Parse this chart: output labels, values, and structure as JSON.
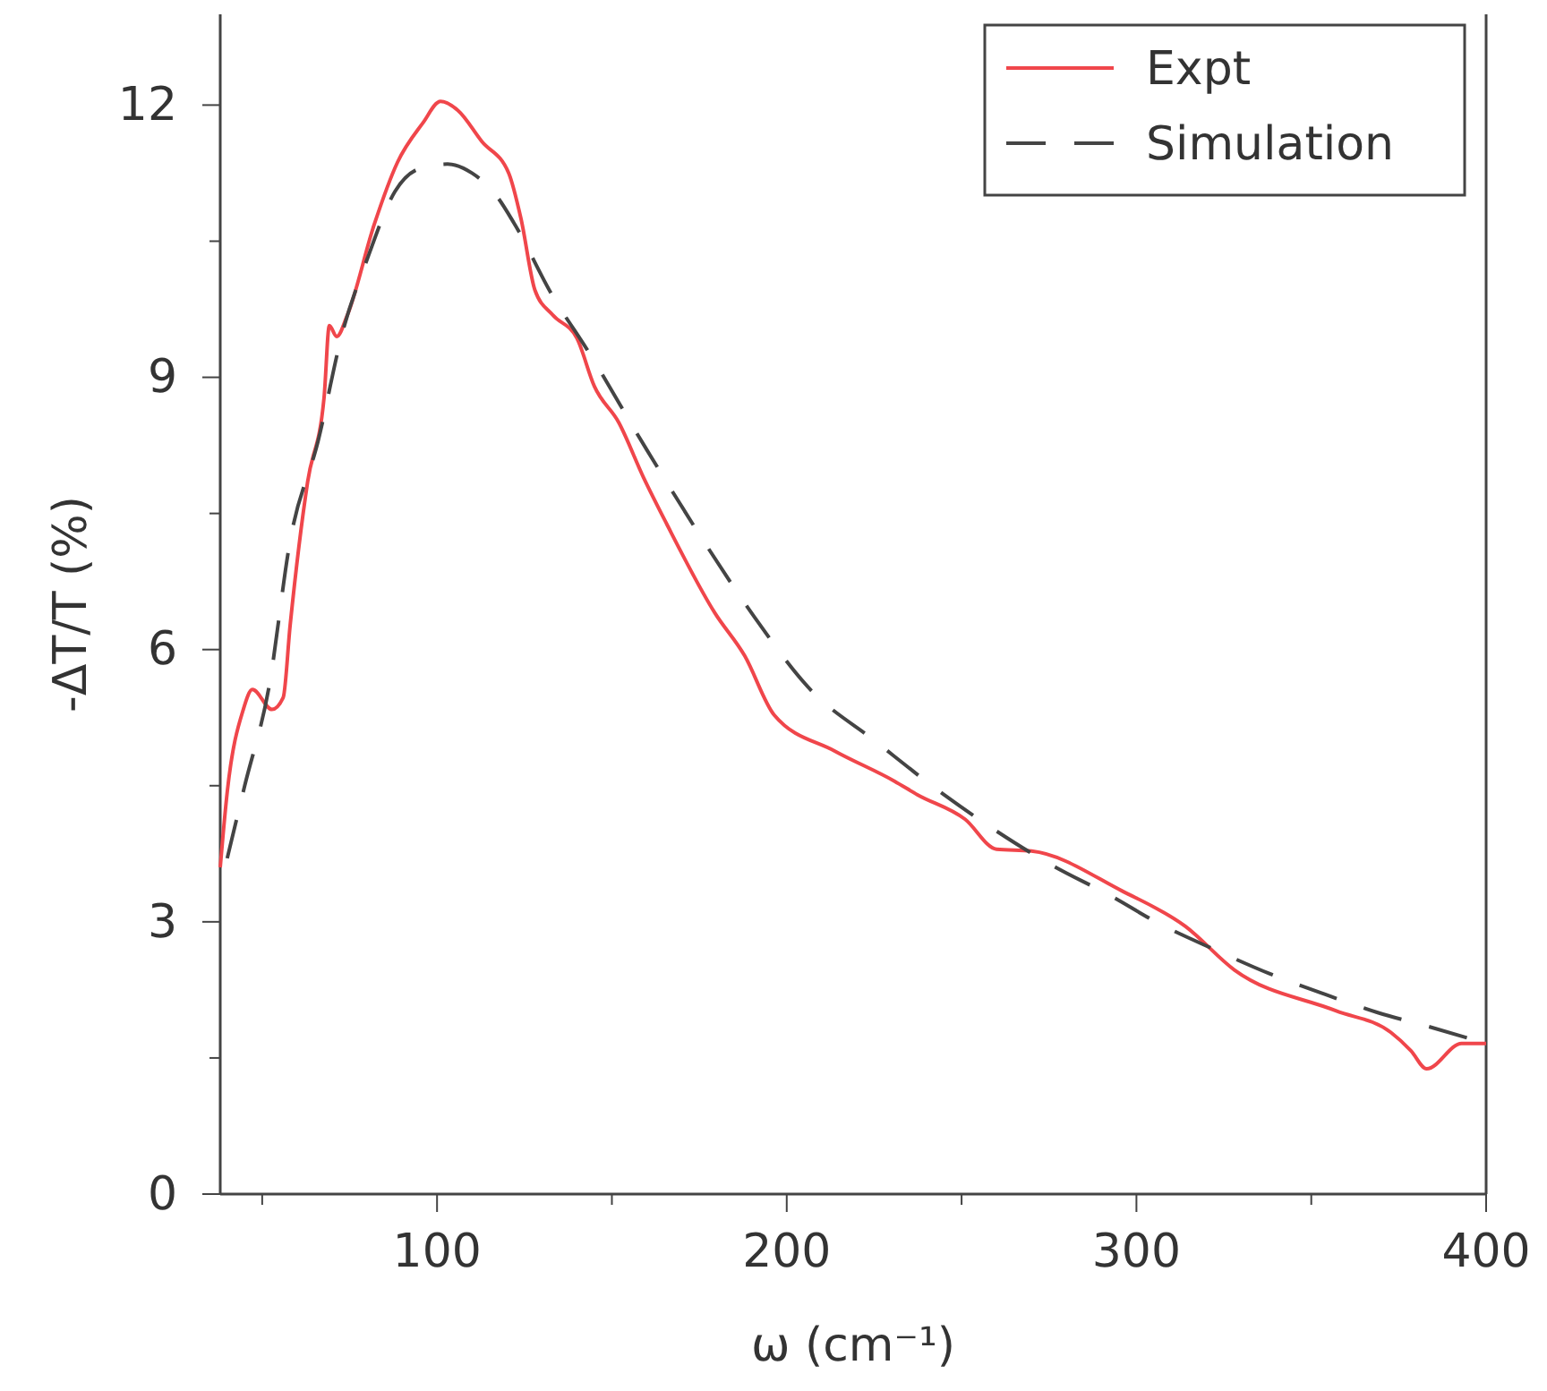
{
  "chart_data": {
    "type": "line",
    "xlabel": "ω (cm⁻¹)",
    "ylabel": "-ΔT/T (%)",
    "xlim": [
      38,
      400
    ],
    "ylim": [
      0,
      13
    ],
    "xticks": [
      {
        "value": 50,
        "label": null
      },
      100,
      {
        "value": 150,
        "label": null
      },
      200,
      {
        "value": 250,
        "label": null
      },
      300,
      {
        "value": 350,
        "label": null
      },
      400
    ],
    "yticks": [
      0,
      {
        "value": 1.5,
        "label": null
      },
      3,
      {
        "value": 4.5,
        "label": null
      },
      6,
      {
        "value": 7.5,
        "label": null
      },
      9,
      {
        "value": 10.5,
        "label": null
      },
      12
    ],
    "grid": false,
    "legend": "top right",
    "series": [
      {
        "name": "Expt",
        "color": "#f0464b",
        "line_style": "solid",
        "x": [
          38,
          40,
          44.6,
          47.2,
          52.8,
          56,
          58,
          63,
          67.7,
          69.2,
          71.3,
          74.4,
          82,
          88.7,
          95.9,
          101,
          106,
          112.8,
          120.5,
          124,
          128,
          133,
          140,
          145,
          152,
          159,
          165.6,
          179.5,
          188,
          196.4,
          213.8,
          230.8,
          237.4,
          251,
          260,
          270,
          295.9,
          314,
          328,
          357,
          372.8,
          378.5,
          383,
          393,
          400
        ],
        "values": [
          3.6,
          4.43,
          5.34,
          5.56,
          5.34,
          5.47,
          6.27,
          7.85,
          8.78,
          9.57,
          9.45,
          9.69,
          10.68,
          11.37,
          11.8,
          12.04,
          11.94,
          11.6,
          11.25,
          10.75,
          9.96,
          9.69,
          9.43,
          8.9,
          8.5,
          7.9,
          7.39,
          6.4,
          5.93,
          5.28,
          4.88,
          4.55,
          4.4,
          4.13,
          3.8,
          3.78,
          3.34,
          2.95,
          2.47,
          2.02,
          1.78,
          1.58,
          1.38,
          1.66,
          1.66
        ]
      },
      {
        "name": "Simulation",
        "color": "#444444",
        "line_style": "dashed",
        "x": [
          40,
          45,
          52,
          58,
          66,
          73,
          80,
          88,
          95,
          103,
          110,
          117,
          122,
          133,
          143,
          160,
          177,
          190,
          207,
          225,
          245,
          260,
          276,
          292,
          307,
          322,
          338,
          354,
          369,
          385,
          400
        ],
        "values": [
          3.7,
          4.5,
          5.6,
          7.2,
          8.3,
          9.5,
          10.3,
          11.05,
          11.3,
          11.35,
          11.25,
          11.0,
          10.7,
          9.9,
          9.3,
          8.2,
          7.15,
          6.4,
          5.55,
          5.0,
          4.4,
          4.0,
          3.62,
          3.3,
          2.97,
          2.7,
          2.43,
          2.2,
          2.0,
          1.83,
          1.66
        ]
      }
    ]
  }
}
